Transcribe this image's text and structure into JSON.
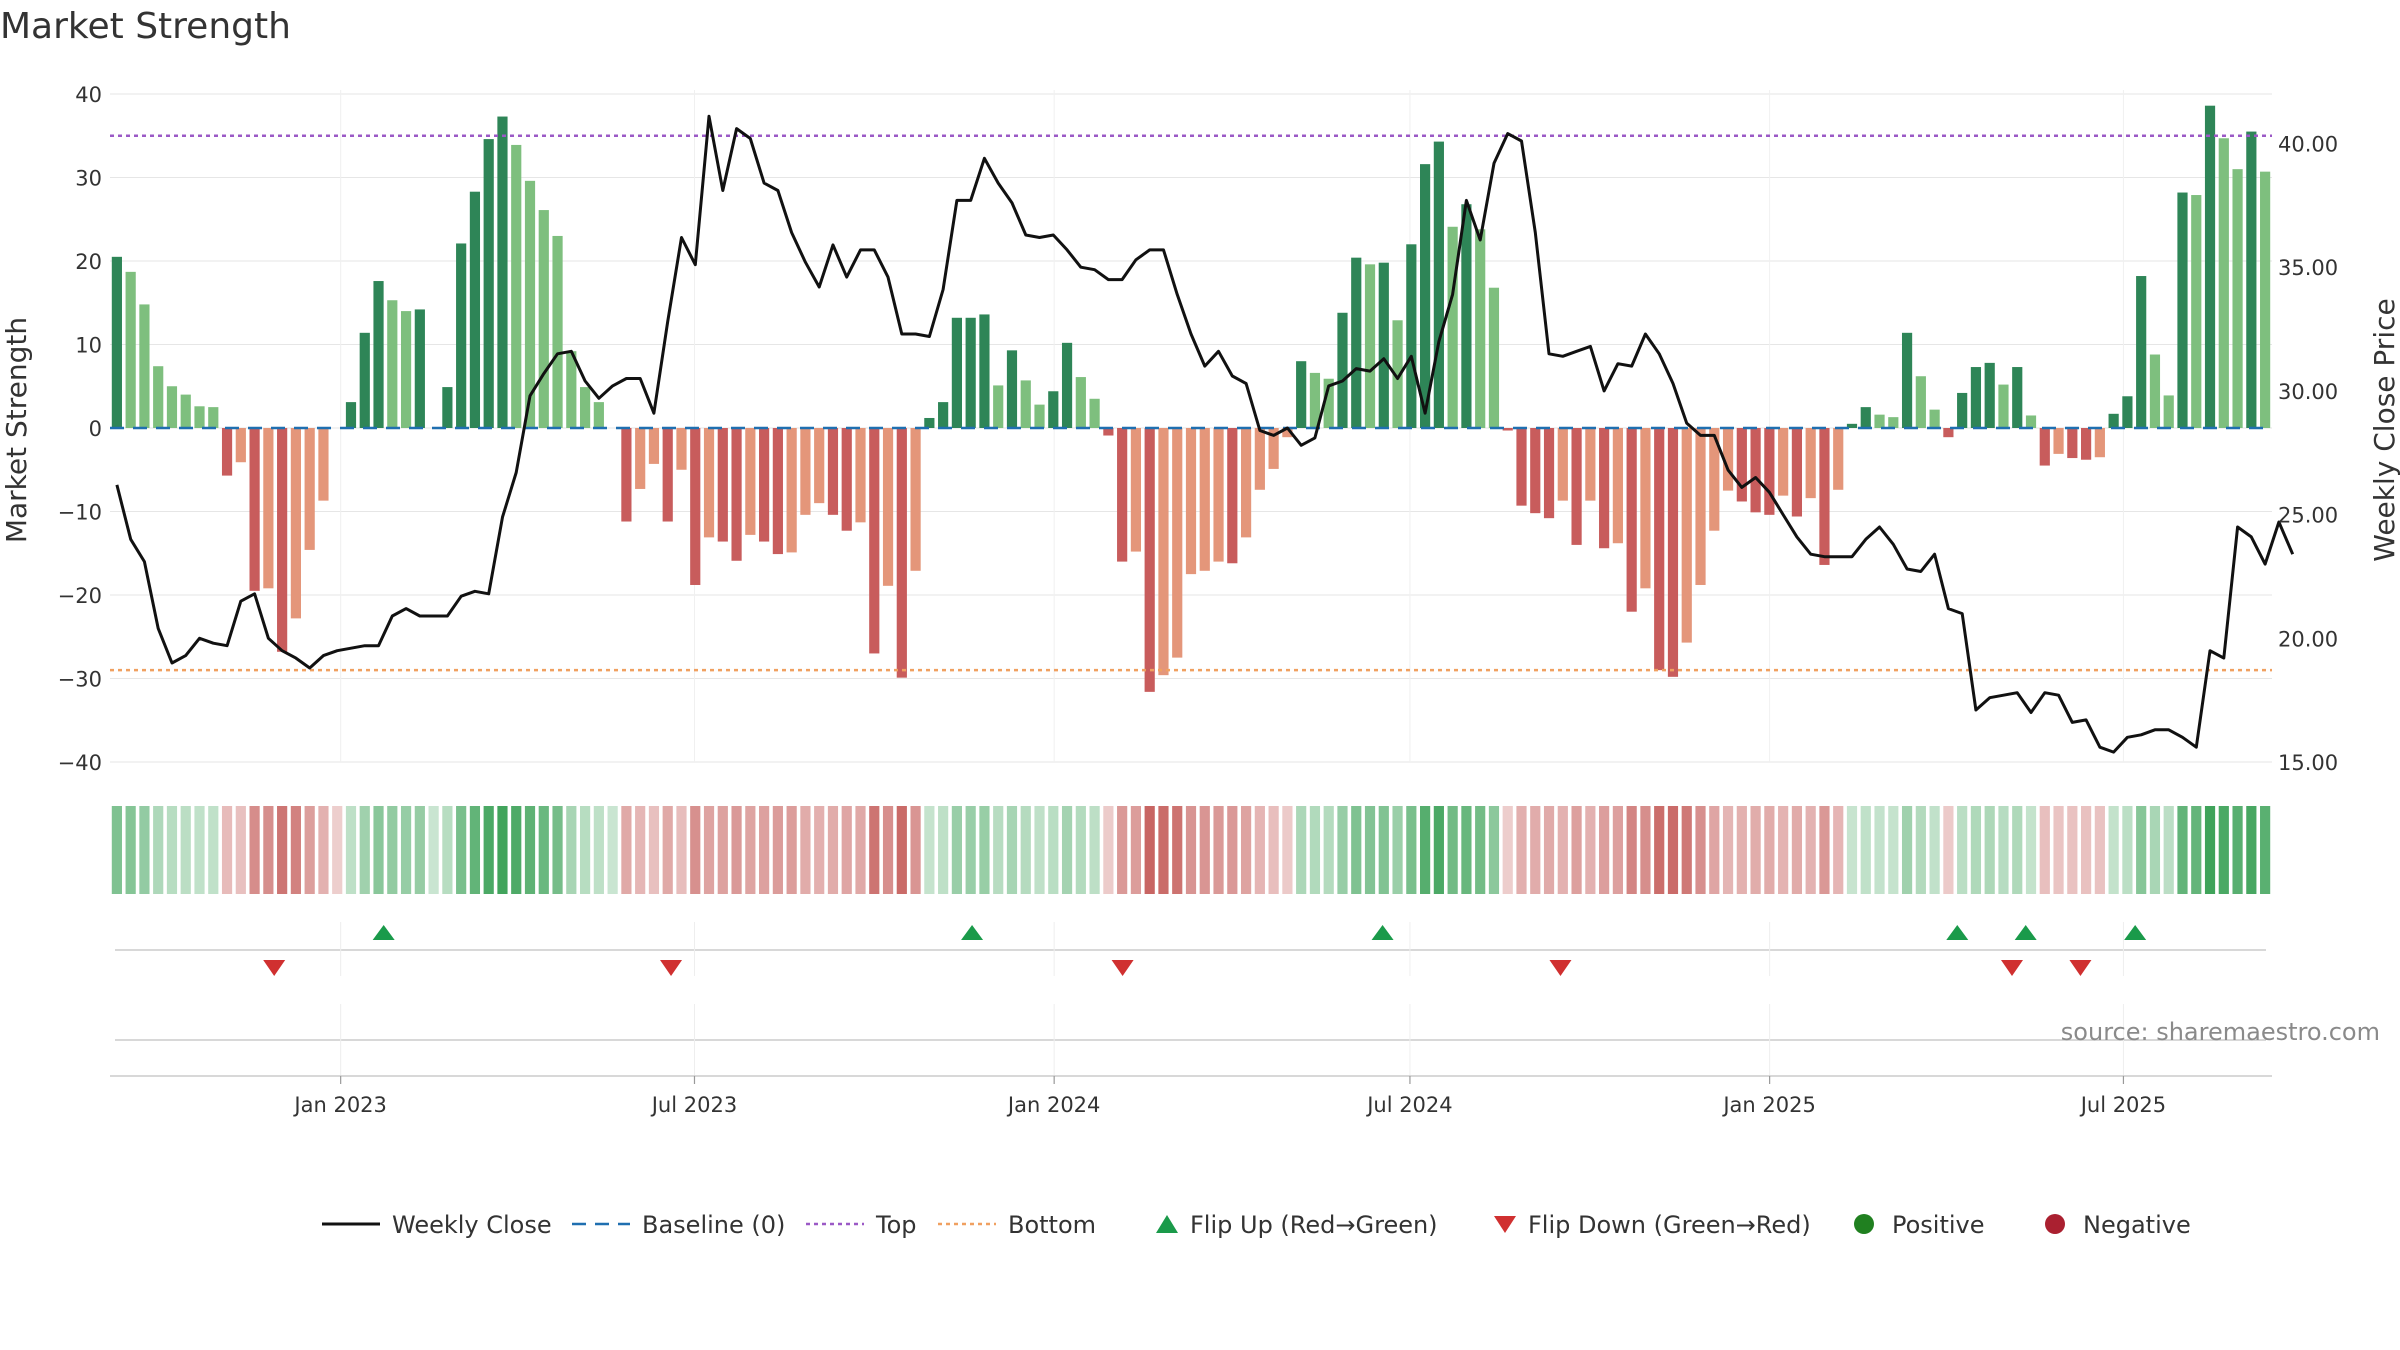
{
  "chart_data": {
    "type": "bar",
    "title": "Market Strength",
    "source": "source: sharemaestro.com",
    "ylabel_left": "Market Strength",
    "ylabel_right": "Weekly Close Price",
    "ylim_left": [
      -40,
      40
    ],
    "ylim_right": [
      15,
      42
    ],
    "yticks_left": [
      "40",
      "30",
      "20",
      "10",
      "0",
      "−10",
      "−20",
      "−30",
      "−40"
    ],
    "yticks_left_values": [
      40,
      30,
      20,
      10,
      0,
      -10,
      -20,
      -30,
      -40
    ],
    "yticks_right": [
      "40.00",
      "35.00",
      "30.00",
      "25.00",
      "20.00",
      "15.00"
    ],
    "yticks_right_values": [
      40,
      35,
      30,
      25,
      20,
      15
    ],
    "x_range": [
      "2022-09-05",
      "2025-09-15"
    ],
    "xticks": [
      {
        "label": "Jan 2023",
        "date": "2023-01-01"
      },
      {
        "label": "Jul 2023",
        "date": "2023-07-01"
      },
      {
        "label": "Jan 2024",
        "date": "2024-01-01"
      },
      {
        "label": "Jul 2024",
        "date": "2024-07-01"
      },
      {
        "label": "Jan 2025",
        "date": "2025-01-01"
      },
      {
        "label": "Jul 2025",
        "date": "2025-07-01"
      }
    ],
    "top_level": 35,
    "bottom_level": -29,
    "baseline": 0,
    "strength": [
      20.5,
      18.7,
      14.8,
      7.4,
      5.0,
      4.0,
      2.6,
      2.5,
      -5.7,
      -4.1,
      -19.5,
      -19.2,
      -26.8,
      -22.8,
      -14.6,
      -8.7,
      0,
      3.1,
      11.4,
      17.6,
      15.3,
      14.0,
      14.2,
      0,
      4.9,
      22.1,
      28.3,
      34.6,
      37.3,
      33.9,
      29.6,
      26.1,
      23.0,
      9.2,
      4.9,
      3.1,
      0,
      -11.2,
      -7.3,
      -4.3,
      -11.2,
      -5.0,
      -18.8,
      -13.1,
      -13.6,
      -15.9,
      -12.8,
      -13.6,
      -15.1,
      -14.9,
      -10.4,
      -9.0,
      -10.4,
      -12.3,
      -11.3,
      -27.0,
      -18.9,
      -29.9,
      -17.1,
      1.2,
      3.1,
      13.2,
      13.2,
      13.6,
      5.1,
      9.3,
      5.7,
      2.8,
      4.4,
      10.2,
      6.1,
      3.5,
      -0.9,
      -16.0,
      -14.8,
      -31.6,
      -29.6,
      -27.5,
      -17.5,
      -17.1,
      -16.0,
      -16.2,
      -13.1,
      -7.4,
      -4.9,
      -1.1,
      8.0,
      6.6,
      5.9,
      13.8,
      20.4,
      19.6,
      19.8,
      12.9,
      22.0,
      31.6,
      34.3,
      24.1,
      26.8,
      23.8,
      16.8,
      -0.3,
      -9.3,
      -10.2,
      -10.8,
      -8.7,
      -14.0,
      -8.7,
      -14.4,
      -13.8,
      -22.0,
      -19.2,
      -29.0,
      -29.8,
      -25.7,
      -18.8,
      -12.3,
      -7.5,
      -8.8,
      -10.1,
      -10.4,
      -8.1,
      -10.6,
      -8.4,
      -16.4,
      -7.4,
      0.5,
      2.5,
      1.6,
      1.3,
      11.4,
      6.2,
      2.2,
      -1.1,
      4.2,
      7.3,
      7.8,
      5.2,
      7.3,
      1.5,
      -4.5,
      -3.1,
      -3.6,
      -3.8,
      -3.5,
      1.7,
      3.8,
      18.2,
      8.8,
      3.9,
      28.2,
      27.9,
      38.6,
      34.7,
      31.0,
      35.5,
      30.7
    ],
    "series": [
      {
        "name": "Weekly Close",
        "values": [
          26.2,
          24.0,
          23.1,
          20.4,
          19.0,
          19.3,
          20.0,
          19.8,
          19.7,
          21.5,
          21.8,
          20.0,
          19.5,
          19.2,
          18.8,
          19.3,
          19.5,
          19.6,
          19.7,
          19.7,
          20.9,
          21.2,
          20.9,
          20.9,
          20.9,
          21.7,
          21.9,
          21.8,
          24.9,
          26.7,
          29.8,
          30.7,
          31.5,
          31.6,
          30.4,
          29.7,
          30.2,
          30.5,
          30.5,
          29.1,
          32.8,
          36.2,
          35.1,
          41.1,
          38.1,
          40.6,
          40.2,
          38.4,
          38.1,
          36.4,
          35.2,
          34.2,
          35.9,
          34.6,
          35.7,
          35.7,
          34.6,
          32.3,
          32.3,
          32.2,
          34.1,
          37.7,
          37.7,
          39.4,
          38.4,
          37.6,
          36.3,
          36.2,
          36.3,
          35.7,
          35.0,
          34.9,
          34.5,
          34.5,
          35.3,
          35.7,
          35.7,
          33.9,
          32.3,
          31.0,
          31.6,
          30.6,
          30.3,
          28.4,
          28.2,
          28.5,
          27.8,
          28.1,
          30.2,
          30.4,
          30.9,
          30.8,
          31.3,
          30.5,
          31.4,
          29.1,
          32.0,
          33.9,
          37.7,
          36.1,
          39.2,
          40.4,
          40.1,
          36.4,
          31.5,
          31.4,
          31.6,
          31.8,
          30.0,
          31.1,
          31.0,
          32.3,
          31.5,
          30.3,
          28.7,
          28.2,
          28.2,
          26.8,
          26.1,
          26.5,
          25.9,
          25.0,
          24.1,
          23.4,
          23.3,
          23.3,
          23.3,
          24.0,
          24.5,
          23.8,
          22.8,
          22.7,
          23.4,
          21.2,
          21.0,
          17.1,
          17.6,
          17.7,
          17.8,
          17.0,
          17.8,
          17.7,
          16.6,
          16.7,
          15.6,
          15.4,
          16.0,
          16.1,
          16.3,
          16.3,
          16.0,
          15.6,
          19.5,
          19.2,
          24.5,
          24.1,
          23.0,
          24.7,
          23.4
        ]
      },
      {
        "name": "Baseline (0)"
      },
      {
        "name": "Top"
      },
      {
        "name": "Bottom"
      }
    ],
    "flips_up_dates": [
      "2023-01-23",
      "2023-11-20",
      "2024-06-17",
      "2025-04-07",
      "2025-05-12",
      "2025-07-07"
    ],
    "flips_down_dates": [
      "2022-11-28",
      "2023-06-19",
      "2024-02-05",
      "2024-09-16",
      "2025-05-05",
      "2025-06-09"
    ],
    "legend": [
      {
        "label": "Weekly Close",
        "kind": "line"
      },
      {
        "label": "Baseline (0)",
        "kind": "dash"
      },
      {
        "label": "Top",
        "kind": "dotted"
      },
      {
        "label": "Bottom",
        "kind": "dotted"
      },
      {
        "label": "Flip Up (Red→Green)",
        "kind": "tri-up"
      },
      {
        "label": "Flip Down (Green→Red)",
        "kind": "tri-down"
      },
      {
        "label": "Positive",
        "kind": "circle"
      },
      {
        "label": "Negative",
        "kind": "circle"
      }
    ],
    "colors": {
      "pos_strong": "#2e8557",
      "pos_weak": "#7ebf7e",
      "neg_strong": "#c85c5c",
      "neg_weak": "#e4967a",
      "close": "#111111",
      "baseline": "#1f6fb0",
      "top": "#9b59c6",
      "bottom": "#f0a060",
      "flip_up": "#1a9a4a",
      "flip_down": "#d03030",
      "positive": "#208020",
      "negative": "#aa2030"
    }
  }
}
